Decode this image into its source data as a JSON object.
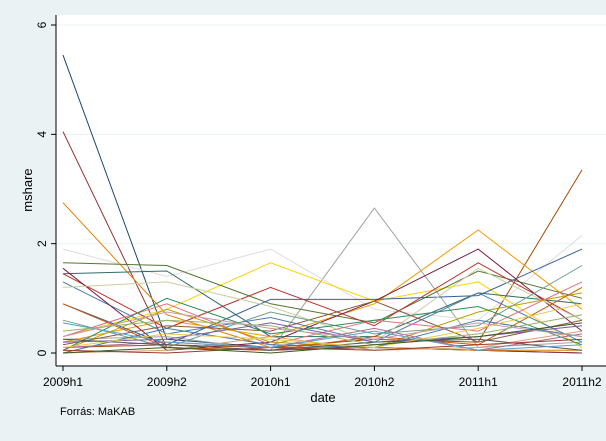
{
  "chart_data": {
    "type": "line",
    "title": "",
    "xlabel": "date",
    "ylabel": "mshare",
    "categories": [
      "2009h1",
      "2009h2",
      "2010h1",
      "2010h2",
      "2011h1",
      "2011h2"
    ],
    "y_ticks": [
      "0",
      "2",
      "4",
      "6"
    ],
    "ylim": [
      0,
      6
    ],
    "grid": "horizontal",
    "legend": "none",
    "note": "Forrás: MaKAB",
    "series": [
      {
        "color": "#1a476f",
        "values": [
          5.45,
          0.25,
          0.1,
          0.1,
          0.05,
          0.0
        ]
      },
      {
        "color": "#90353b",
        "values": [
          4.05,
          0.1,
          0.05,
          0.1,
          0.05,
          0.0
        ]
      },
      {
        "color": "#e37e00",
        "values": [
          2.75,
          0.7,
          0.1,
          0.1,
          0.05,
          0.05
        ]
      },
      {
        "color": "#a0a0a0",
        "values": [
          0.25,
          0.3,
          0.05,
          2.65,
          0.1,
          0.2
        ]
      },
      {
        "color": "#a94800",
        "values": [
          0.1,
          0.15,
          0.1,
          0.25,
          0.2,
          3.35
        ]
      },
      {
        "color": "#dddddd",
        "values": [
          1.9,
          1.4,
          1.9,
          0.8,
          0.6,
          2.15
        ]
      },
      {
        "color": "#ffd200",
        "values": [
          0.3,
          0.8,
          1.65,
          0.95,
          1.3,
          0.1
        ]
      },
      {
        "color": "#f59b00",
        "values": [
          0.2,
          0.6,
          0.3,
          0.9,
          2.25,
          0.8
        ]
      },
      {
        "color": "#55752f",
        "values": [
          1.65,
          1.6,
          0.9,
          0.55,
          1.5,
          1.0
        ]
      },
      {
        "color": "#2d6d66",
        "values": [
          1.45,
          1.5,
          0.3,
          0.3,
          1.1,
          0.9
        ]
      },
      {
        "color": "#be2f2f",
        "values": [
          1.45,
          0.45,
          1.2,
          0.5,
          1.65,
          0.6
        ]
      },
      {
        "color": "#395e9b",
        "values": [
          0.9,
          0.15,
          0.98,
          0.98,
          1.05,
          1.9
        ]
      },
      {
        "color": "#4e7bb2",
        "values": [
          1.3,
          0.35,
          0.65,
          0.2,
          1.1,
          0.2
        ]
      },
      {
        "color": "#7a1f3d",
        "values": [
          1.55,
          0.05,
          0.2,
          0.95,
          1.9,
          0.4
        ]
      },
      {
        "color": "#c7d0a1",
        "values": [
          1.2,
          1.3,
          0.85,
          0.2,
          1.55,
          0.6
        ]
      },
      {
        "color": "#e36e80",
        "values": [
          0.3,
          0.9,
          0.15,
          0.6,
          0.4,
          1.3
        ]
      },
      {
        "color": "#8a5a3c",
        "values": [
          0.15,
          0.5,
          0.4,
          0.95,
          0.2,
          0.6
        ]
      },
      {
        "color": "#6e9e8c",
        "values": [
          0.6,
          0.1,
          0.75,
          0.35,
          0.5,
          1.6
        ]
      },
      {
        "color": "#b8a000",
        "values": [
          0.05,
          0.8,
          0.2,
          0.1,
          0.75,
          1.1
        ]
      },
      {
        "color": "#7e57a8",
        "values": [
          0.2,
          0.25,
          0.55,
          0.2,
          0.3,
          0.5
        ]
      },
      {
        "color": "#2e8b57",
        "values": [
          0.05,
          1.0,
          0.35,
          0.6,
          0.85,
          0.15
        ]
      },
      {
        "color": "#c05a10",
        "values": [
          0.9,
          0.1,
          0.05,
          0.3,
          0.15,
          1.2
        ]
      },
      {
        "color": "#3c78a8",
        "values": [
          0.0,
          0.45,
          0.15,
          0.1,
          0.6,
          0.3
        ]
      },
      {
        "color": "#b06a8a",
        "values": [
          0.1,
          0.2,
          0.1,
          0.45,
          0.05,
          0.35
        ]
      },
      {
        "color": "#96b46b",
        "values": [
          0.4,
          0.6,
          0.5,
          0.15,
          0.35,
          0.7
        ]
      },
      {
        "color": "#d4a070",
        "values": [
          0.0,
          0.05,
          0.3,
          0.05,
          0.1,
          0.4
        ]
      },
      {
        "color": "#555555",
        "values": [
          0.25,
          0.15,
          0.05,
          0.2,
          0.25,
          0.05
        ]
      },
      {
        "color": "#e9c94a",
        "values": [
          0.1,
          0.35,
          0.25,
          0.1,
          0.45,
          0.9
        ]
      },
      {
        "color": "#9a3a2a",
        "values": [
          0.05,
          0.0,
          0.1,
          0.05,
          0.15,
          0.25
        ]
      },
      {
        "color": "#5aa0c8",
        "values": [
          0.55,
          0.2,
          0.1,
          0.4,
          0.05,
          0.15
        ]
      },
      {
        "color": "#c89aa8",
        "values": [
          0.3,
          0.75,
          0.45,
          0.25,
          0.55,
          0.3
        ]
      },
      {
        "color": "#3a5a20",
        "values": [
          0.0,
          0.1,
          0.0,
          0.15,
          0.3,
          0.55
        ]
      }
    ]
  }
}
